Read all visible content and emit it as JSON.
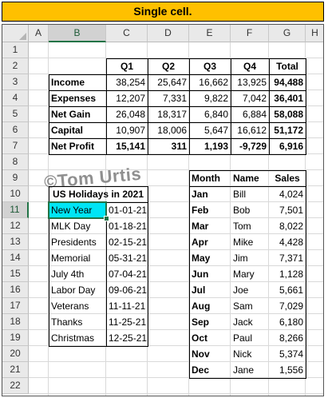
{
  "banner": "Single cell.",
  "columns": [
    "A",
    "B",
    "C",
    "D",
    "E",
    "F",
    "G",
    "H"
  ],
  "rows": [
    "1",
    "2",
    "3",
    "4",
    "5",
    "6",
    "7",
    "8",
    "9",
    "10",
    "11",
    "12",
    "13",
    "14",
    "15",
    "16",
    "17",
    "18",
    "19",
    "20",
    "21",
    "22"
  ],
  "selection": {
    "column": "B",
    "row": "11",
    "fill_color": "#00e5f5"
  },
  "watermark": "©Tom Urtis",
  "financial": {
    "headers": [
      "Q1",
      "Q2",
      "Q3",
      "Q4",
      "Total"
    ],
    "rows": [
      {
        "label": "Income",
        "values": [
          "38,254",
          "25,647",
          "16,662",
          "13,925"
        ],
        "total": "94,488"
      },
      {
        "label": "Expenses",
        "values": [
          "12,207",
          "7,331",
          "9,822",
          "7,042"
        ],
        "total": "36,401"
      },
      {
        "label": "Net Gain",
        "values": [
          "26,048",
          "18,317",
          "6,840",
          "6,884"
        ],
        "total": "58,088"
      },
      {
        "label": "Capital",
        "values": [
          "10,907",
          "18,006",
          "5,647",
          "16,612"
        ],
        "total": "51,172"
      },
      {
        "label": "Net Profit",
        "values": [
          "15,141",
          "311",
          "1,193",
          "-9,729"
        ],
        "total": "6,916"
      }
    ]
  },
  "holidays": {
    "title": "US Holidays in 2021",
    "items": [
      {
        "name": "New Year",
        "date": "01-01-21"
      },
      {
        "name": "MLK Day",
        "date": "01-18-21"
      },
      {
        "name": "Presidents",
        "date": "02-15-21"
      },
      {
        "name": "Memorial",
        "date": "05-31-21"
      },
      {
        "name": "July 4th",
        "date": "07-04-21"
      },
      {
        "name": "Labor Day",
        "date": "09-06-21"
      },
      {
        "name": "Veterans",
        "date": "11-11-21"
      },
      {
        "name": "Thanks",
        "date": "11-25-21"
      },
      {
        "name": "Christmas",
        "date": "12-25-21"
      }
    ]
  },
  "sales": {
    "headers": [
      "Month",
      "Name",
      "Sales"
    ],
    "rows": [
      {
        "month": "Jan",
        "name": "Bill",
        "sales": "4,024"
      },
      {
        "month": "Feb",
        "name": "Bob",
        "sales": "7,501"
      },
      {
        "month": "Mar",
        "name": "Tom",
        "sales": "8,022"
      },
      {
        "month": "Apr",
        "name": "Mike",
        "sales": "4,428"
      },
      {
        "month": "May",
        "name": "Jim",
        "sales": "7,371"
      },
      {
        "month": "Jun",
        "name": "Mary",
        "sales": "1,128"
      },
      {
        "month": "Jul",
        "name": "Joe",
        "sales": "5,661"
      },
      {
        "month": "Aug",
        "name": "Sam",
        "sales": "7,029"
      },
      {
        "month": "Sep",
        "name": "Jack",
        "sales": "6,180"
      },
      {
        "month": "Oct",
        "name": "Paul",
        "sales": "8,266"
      },
      {
        "month": "Nov",
        "name": "Nick",
        "sales": "5,374"
      },
      {
        "month": "Dec",
        "name": "Jane",
        "sales": "1,556"
      }
    ]
  }
}
